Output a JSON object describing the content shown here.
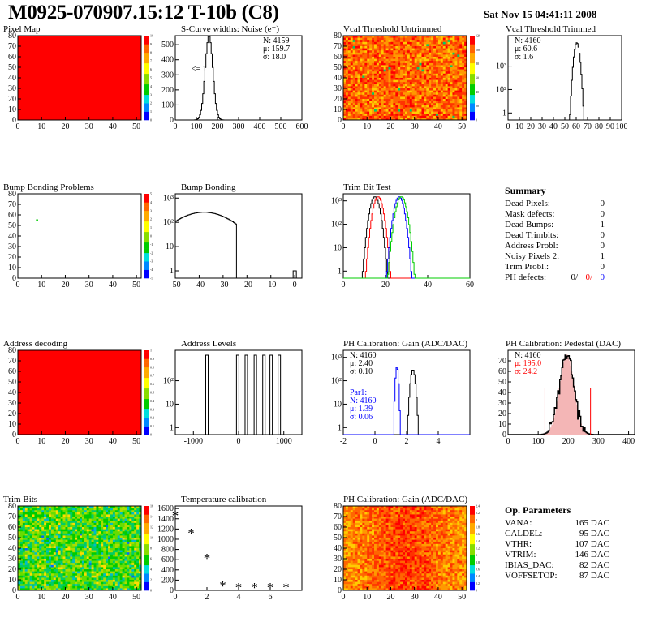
{
  "header": {
    "title": "M0925-070907.15:12 T-10b (C8)",
    "timestamp": "Sat Nov 15 04:41:11 2008"
  },
  "colors": {
    "red": "#ff0000",
    "blue": "#0000ff",
    "green": "#00cc00",
    "black": "#000000",
    "pink_fill": "#f4b6b6"
  },
  "chart_data": [
    {
      "id": "pixel-map",
      "type": "heatmap",
      "title": "Pixel Map",
      "xlim": [
        0,
        52
      ],
      "ylim": [
        0,
        80
      ],
      "xticks": [
        0,
        10,
        20,
        30,
        40,
        50
      ],
      "yticks": [
        0,
        10,
        20,
        30,
        40,
        50,
        60,
        70,
        80
      ],
      "fill": "uniform-max",
      "colorbar": [
        "0",
        "1",
        "2",
        "3",
        "4",
        "5",
        "6",
        "7",
        "8",
        "9",
        "10"
      ]
    },
    {
      "id": "scurve-widths",
      "type": "histogram",
      "title": "S-Curve widths: Noise (e⁻)",
      "xlim": [
        0,
        600
      ],
      "ylim": [
        0,
        560
      ],
      "xticks": [
        0,
        100,
        200,
        300,
        400,
        500,
        600
      ],
      "yticks": [
        0,
        100,
        200,
        300,
        400,
        500
      ],
      "peaks": [
        {
          "mean": 160,
          "sigma": 18,
          "height": 560
        }
      ],
      "stats": [
        "N: 4159",
        "μ: 159.7",
        "σ: 18.0"
      ],
      "annotation": "<= 1"
    },
    {
      "id": "vcal-untrimmed",
      "type": "heatmap",
      "title": "Vcal Threshold Untrimmed",
      "xlim": [
        0,
        52
      ],
      "ylim": [
        0,
        80
      ],
      "xticks": [
        0,
        10,
        20,
        30,
        40,
        50
      ],
      "yticks": [
        0,
        10,
        20,
        30,
        40,
        50,
        60,
        70,
        80
      ],
      "fill": "noise-red-orange-yellow",
      "colorbar": [
        "0",
        "20",
        "40",
        "60",
        "80",
        "100",
        "120"
      ]
    },
    {
      "id": "vcal-trimmed",
      "type": "histogram",
      "title": "Vcal Threshold Trimmed",
      "yscale": "log",
      "xlim": [
        0,
        100
      ],
      "ylog": [
        0.5,
        2000
      ],
      "xticks": [
        0,
        10,
        20,
        30,
        40,
        50,
        60,
        70,
        80,
        90,
        100
      ],
      "yticklabels": [
        "1",
        "10²",
        "10³"
      ],
      "peaks": [
        {
          "mean": 60.6,
          "sigma": 1.6,
          "height": 1000
        }
      ],
      "stats": [
        "N: 4160",
        "μ: 60.6",
        "σ: 1.6"
      ]
    },
    {
      "id": "bump-problems",
      "type": "heatmap",
      "title": "Bump Bonding Problems",
      "xlim": [
        0,
        52
      ],
      "ylim": [
        0,
        80
      ],
      "xticks": [
        0,
        10,
        20,
        30,
        40,
        50
      ],
      "yticks": [
        0,
        10,
        20,
        30,
        40,
        50,
        60,
        70,
        80
      ],
      "fill": "empty",
      "points": [
        {
          "x": 8,
          "y": 55
        }
      ],
      "colorbar": [
        "-5",
        "-4",
        "-3",
        "-2",
        "-1",
        "0",
        "1",
        "2",
        "3",
        "4",
        "5"
      ]
    },
    {
      "id": "bump-bonding",
      "type": "histogram",
      "title": "Bump Bonding",
      "yscale": "log",
      "xlim": [
        -50,
        3
      ],
      "ylog": [
        0.5,
        1500
      ],
      "xticks": [
        -50,
        -40,
        -30,
        -20,
        -10,
        0
      ],
      "yticklabels": [
        "1",
        "10",
        "10²",
        "10³"
      ],
      "peaks": [
        {
          "mean": -38,
          "sigma": 9,
          "height": 260
        }
      ],
      "outliers": [
        {
          "x": 0,
          "height": 1
        }
      ]
    },
    {
      "id": "trim-bit-test",
      "type": "histogram",
      "title": "Trim Bit Test",
      "yscale": "log",
      "xlim": [
        0,
        60
      ],
      "ylog": [
        0.5,
        2000
      ],
      "xticks": [
        0,
        20,
        40,
        60
      ],
      "yticklabels": [
        "1",
        "10",
        "10²",
        "10³"
      ],
      "series": [
        {
          "color": "black",
          "peaks": [
            {
              "mean": 15,
              "sigma": 1.5,
              "height": 1500
            }
          ]
        },
        {
          "color": "red",
          "peaks": [
            {
              "mean": 16.5,
              "sigma": 1.5,
              "height": 1500
            }
          ]
        },
        {
          "color": "blue",
          "peaks": [
            {
              "mean": 26.5,
              "sigma": 1.5,
              "height": 1500
            }
          ]
        },
        {
          "color": "green",
          "peaks": [
            {
              "mean": 27.5,
              "sigma": 1.6,
              "height": 1500
            }
          ]
        }
      ]
    },
    {
      "id": "address-decoding",
      "type": "heatmap",
      "title": "Address decoding",
      "xlim": [
        0,
        52
      ],
      "ylim": [
        0,
        80
      ],
      "xticks": [
        0,
        10,
        20,
        30,
        40,
        50
      ],
      "yticks": [
        0,
        10,
        20,
        30,
        40,
        50,
        60,
        70,
        80
      ],
      "fill": "uniform-max",
      "colorbar": [
        "0",
        "0.1",
        "0.2",
        "0.3",
        "0.4",
        "0.5",
        "0.6",
        "0.7",
        "0.8",
        "0.9",
        "1"
      ]
    },
    {
      "id": "address-levels",
      "type": "histogram",
      "title": "Address Levels",
      "yscale": "log",
      "xlim": [
        -1400,
        1400
      ],
      "ylog": [
        0.5,
        2000
      ],
      "xticks": [
        -1000,
        0,
        1000
      ],
      "yticklabels": [
        "1",
        "10",
        "10²"
      ],
      "spikes": [
        -700,
        -20,
        170,
        370,
        560,
        720,
        900
      ]
    },
    {
      "id": "ph-gain",
      "type": "histogram",
      "title": "PH Calibration: Gain (ADC/DAC)",
      "yscale": "log",
      "xlim": [
        -2,
        6
      ],
      "ylog": [
        0.5,
        2000
      ],
      "xticks": [
        -2,
        0,
        2,
        4
      ],
      "yticklabels": [
        "1",
        "10",
        "10²",
        "10³"
      ],
      "series": [
        {
          "color": "black",
          "peaks": [
            {
              "mean": 2.4,
              "sigma": 0.1,
              "height": 300
            }
          ]
        },
        {
          "color": "blue",
          "peaks": [
            {
              "mean": 1.39,
              "sigma": 0.06,
              "height": 400
            }
          ]
        }
      ],
      "stats": [
        "N: 4160",
        "μ: 2.40",
        "σ: 0.10"
      ],
      "stats2": [
        "Par1:",
        "N: 4160",
        "μ: 1.39",
        "σ: 0.06"
      ]
    },
    {
      "id": "ph-pedestal",
      "type": "histogram",
      "title": "PH Calibration: Pedestal (DAC)",
      "xlim": [
        0,
        420
      ],
      "ylim": [
        0,
        80
      ],
      "xticks": [
        0,
        100,
        200,
        300,
        400
      ],
      "yticks": [
        0,
        10,
        20,
        30,
        40,
        50,
        60,
        70
      ],
      "peaks": [
        {
          "mean": 195,
          "sigma": 24.2,
          "height": 76
        }
      ],
      "stats": [
        "N: 4160",
        "μ: 195.0",
        "σ: 24.2"
      ]
    },
    {
      "id": "trim-bits",
      "type": "heatmap",
      "title": "Trim Bits",
      "xlim": [
        0,
        52
      ],
      "ylim": [
        0,
        80
      ],
      "xticks": [
        0,
        10,
        20,
        30,
        40,
        50
      ],
      "yticks": [
        0,
        10,
        20,
        30,
        40,
        50,
        60,
        70,
        80
      ],
      "fill": "noise-green",
      "colorbar": [
        "0",
        "2",
        "4",
        "6",
        "8",
        "10",
        "12",
        "14",
        "16"
      ]
    },
    {
      "id": "temperature-calibration",
      "type": "scatter",
      "title": "Temperature calibration",
      "xlim": [
        0,
        8
      ],
      "ylim": [
        0,
        1650
      ],
      "xticks": [
        0,
        2,
        4,
        6
      ],
      "yticks": [
        0,
        200,
        400,
        600,
        800,
        1000,
        1200,
        1400,
        1600
      ],
      "x": [
        0,
        1,
        2,
        3,
        4,
        5,
        6,
        7
      ],
      "y": [
        1480,
        1140,
        650,
        110,
        80,
        80,
        80,
        80
      ]
    },
    {
      "id": "ph-gain-map",
      "type": "heatmap",
      "title": "PH Calibration: Gain (ADC/DAC)",
      "xlim": [
        0,
        52
      ],
      "ylim": [
        0,
        80
      ],
      "xticks": [
        0,
        10,
        20,
        30,
        40,
        50
      ],
      "yticks": [
        0,
        10,
        20,
        30,
        40,
        50,
        60,
        70,
        80
      ],
      "fill": "noise-orange-center",
      "colorbar": [
        "0",
        "0.2",
        "0.4",
        "0.6",
        "0.8",
        "1",
        "1.2",
        "1.4",
        "1.6",
        "1.8",
        "2",
        "2.2",
        "2.4"
      ]
    }
  ],
  "summary": {
    "heading": "Summary",
    "rows": [
      {
        "label": "Dead Pixels:",
        "value": "0"
      },
      {
        "label": "Mask defects:",
        "value": "0"
      },
      {
        "label": "Dead Bumps:",
        "value": "1"
      },
      {
        "label": "Dead Trimbits:",
        "value": "0"
      },
      {
        "label": "Address Probl:",
        "value": "0"
      },
      {
        "label": "Noisy Pixels 2:",
        "value": "1"
      },
      {
        "label": "Trim Probl.:",
        "value": "0"
      }
    ],
    "ph_label": "PH defects:",
    "ph_values": [
      "0/",
      "0/",
      "0"
    ]
  },
  "op_params": {
    "heading": "Op. Parameters",
    "rows": [
      {
        "label": "VANA:",
        "value": "165 DAC"
      },
      {
        "label": "CALDEL:",
        "value": "95 DAC"
      },
      {
        "label": "VTHR:",
        "value": "107 DAC"
      },
      {
        "label": "VTRIM:",
        "value": "146 DAC"
      },
      {
        "label": "IBIAS_DAC:",
        "value": "82 DAC"
      },
      {
        "label": "VOFFSETOP:",
        "value": "87 DAC"
      }
    ]
  }
}
